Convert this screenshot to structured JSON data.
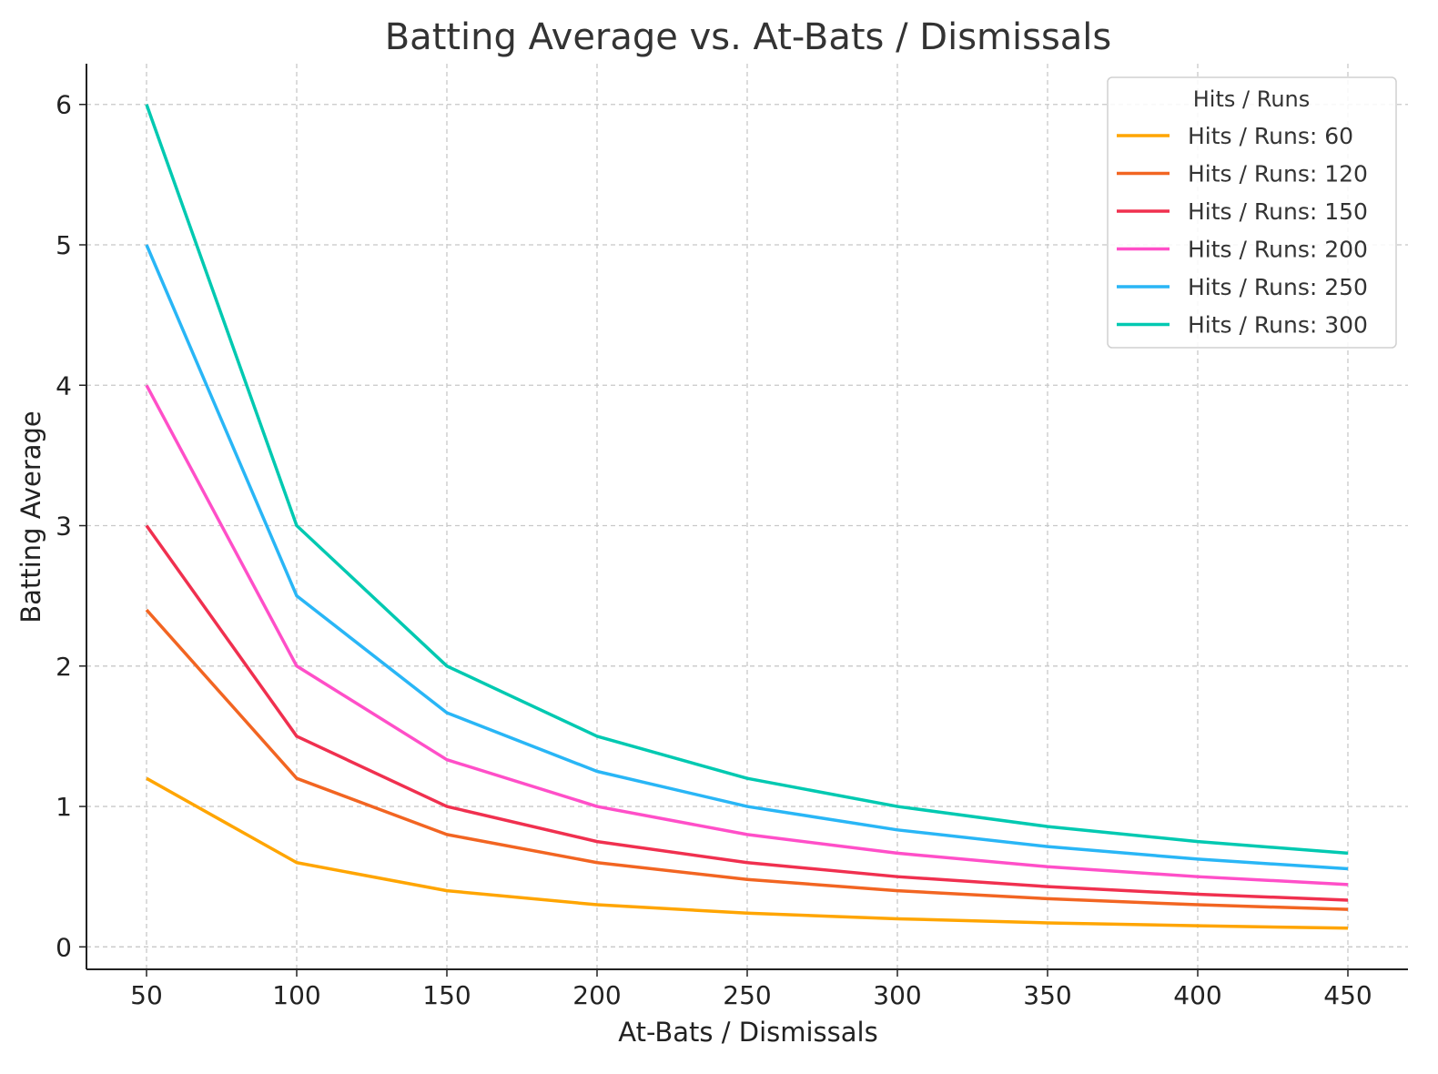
{
  "chart_data": {
    "type": "line",
    "title": "Batting Average vs. At-Bats / Dismissals",
    "xlabel": "At-Bats / Dismissals",
    "ylabel": "Batting Average",
    "xlim": [
      30,
      470
    ],
    "ylim": [
      -0.16,
      6.29
    ],
    "xticks": [
      50,
      100,
      150,
      200,
      250,
      300,
      350,
      400,
      450
    ],
    "yticks": [
      0,
      1,
      2,
      3,
      4,
      5,
      6
    ],
    "grid": true,
    "legend": {
      "title": "Hits / Runs",
      "placement": "top-right"
    },
    "x": [
      50,
      100,
      150,
      200,
      250,
      300,
      350,
      400,
      450
    ],
    "series": [
      {
        "name": "Hits / Runs: 60",
        "color": "#FFA500",
        "values": [
          1.2,
          0.6,
          0.4,
          0.3,
          0.24,
          0.2,
          0.171,
          0.15,
          0.133
        ]
      },
      {
        "name": "Hits / Runs: 120",
        "color": "#F26522",
        "values": [
          2.4,
          1.2,
          0.8,
          0.6,
          0.48,
          0.4,
          0.343,
          0.3,
          0.267
        ]
      },
      {
        "name": "Hits / Runs: 150",
        "color": "#F0304F",
        "values": [
          3,
          1.5,
          1,
          0.75,
          0.6,
          0.5,
          0.429,
          0.375,
          0.333
        ]
      },
      {
        "name": "Hits / Runs: 200",
        "color": "#FF4FC8",
        "values": [
          4,
          2,
          1.333,
          1,
          0.8,
          0.667,
          0.571,
          0.5,
          0.444
        ]
      },
      {
        "name": "Hits / Runs: 250",
        "color": "#29B6F6",
        "values": [
          5,
          2.5,
          1.667,
          1.25,
          1,
          0.833,
          0.714,
          0.625,
          0.556
        ]
      },
      {
        "name": "Hits / Runs: 300",
        "color": "#00C9B1",
        "values": [
          6,
          3,
          2,
          1.5,
          1.2,
          1,
          0.857,
          0.75,
          0.667
        ]
      }
    ]
  }
}
